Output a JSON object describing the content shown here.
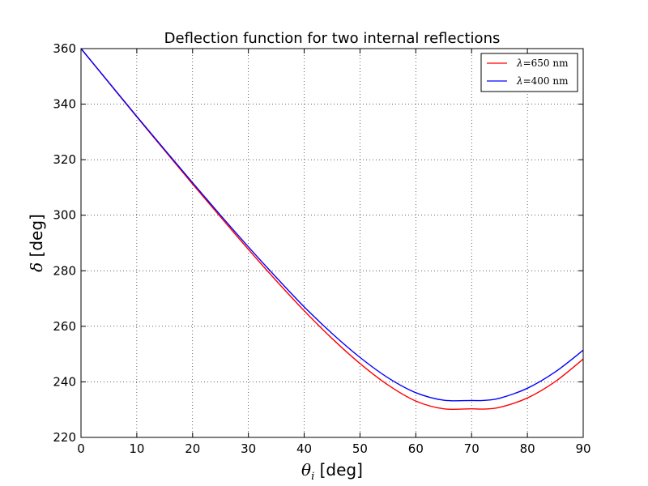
{
  "chart_data": {
    "type": "line",
    "title": "Deflection function for two internal reflections",
    "xlabel": {
      "symbol": "θ",
      "subscript": "i",
      "unit": " [deg]"
    },
    "ylabel": {
      "symbol": "δ",
      "unit": " [deg]"
    },
    "xlim": [
      0,
      90
    ],
    "ylim": [
      220,
      360
    ],
    "xticks": [
      0,
      10,
      20,
      30,
      40,
      50,
      60,
      70,
      80,
      90
    ],
    "yticks": [
      220,
      240,
      260,
      280,
      300,
      320,
      340,
      360
    ],
    "grid": true,
    "legend_position": "top-right",
    "x": [
      0,
      5,
      10,
      15,
      20,
      25,
      30,
      35,
      40,
      45,
      50,
      55,
      60,
      65,
      70,
      72,
      75,
      80,
      85,
      90
    ],
    "series": [
      {
        "name": "λ=650 nm",
        "name_parts": {
          "symbol": "λ",
          "text": "=650 nm"
        },
        "color": "#ff0000",
        "values": [
          360,
          347.7,
          335.4,
          323.3,
          311.2,
          299.4,
          287.7,
          276.4,
          265.6,
          255.6,
          246.6,
          238.9,
          233.1,
          230.3,
          230.3,
          230.2,
          230.8,
          234.2,
          240.1,
          248.2
        ]
      },
      {
        "name": "λ=400 nm",
        "name_parts": {
          "symbol": "λ",
          "text": "=400 nm"
        },
        "color": "#0000ff",
        "values": [
          360,
          347.8,
          335.6,
          323.6,
          311.7,
          300.0,
          288.6,
          277.6,
          267.0,
          257.4,
          248.8,
          241.5,
          236.1,
          233.4,
          233.3,
          233.3,
          234.1,
          237.7,
          243.6,
          251.4
        ]
      }
    ]
  }
}
